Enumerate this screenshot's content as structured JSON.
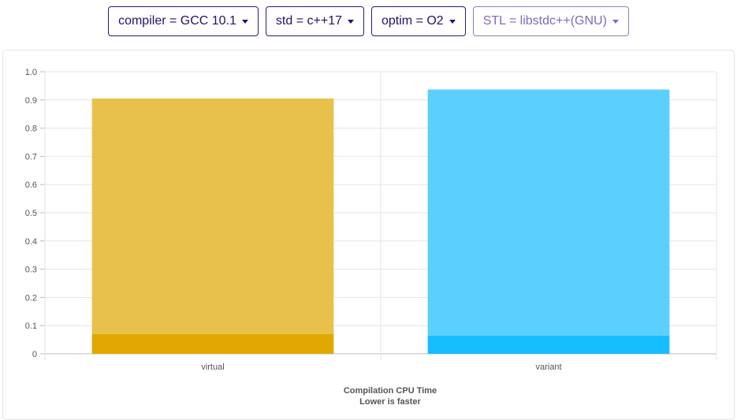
{
  "filters": [
    {
      "label": "compiler = GCC 10.1",
      "muted": false
    },
    {
      "label": "std = c++17",
      "muted": false
    },
    {
      "label": "optim = O2",
      "muted": false
    },
    {
      "label": "STL = libstdc++(GNU)",
      "muted": true
    }
  ],
  "chart_data": {
    "type": "bar",
    "stacked": true,
    "categories": [
      "virtual",
      "variant"
    ],
    "series": [
      {
        "values": [
          0.07,
          0.065
        ],
        "colors": [
          "#e0a800",
          "#17bdfd"
        ]
      },
      {
        "values": [
          0.835,
          0.872
        ],
        "colors": [
          "#e8c14d",
          "#5bd0fe"
        ]
      }
    ],
    "totals": [
      0.905,
      0.937
    ],
    "ylim": [
      0,
      1.0
    ],
    "yticks": [
      "0",
      "0.1",
      "0.2",
      "0.3",
      "0.4",
      "0.5",
      "0.6",
      "0.7",
      "0.8",
      "0.9",
      "1.0"
    ],
    "grid": true,
    "caption_line1": "Compilation CPU Time",
    "caption_line2": "Lower is faster"
  }
}
